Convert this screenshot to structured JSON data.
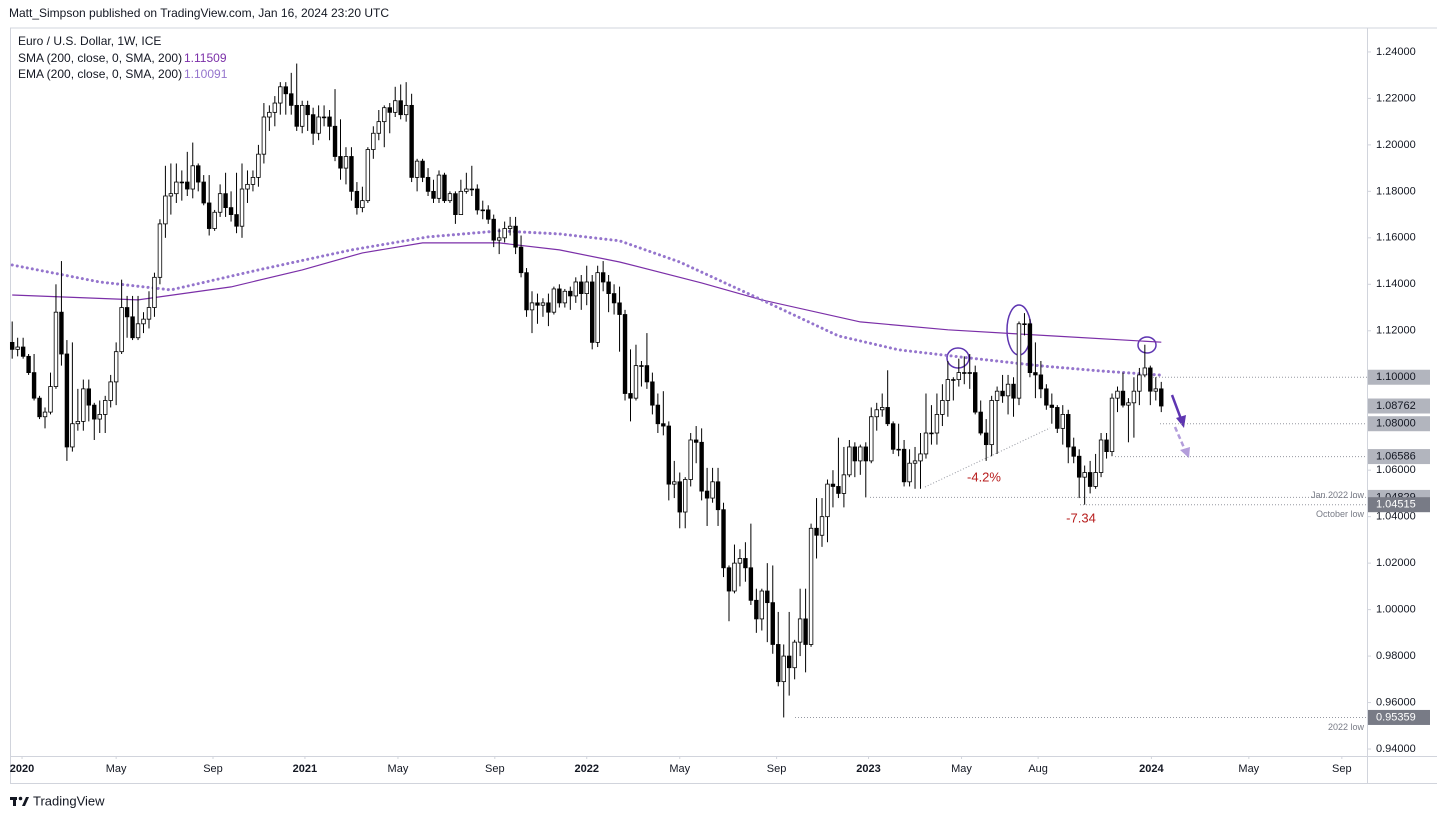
{
  "header": "Matt_Simpson published on TradingView.com, Jan 16, 2024 23:20 UTC",
  "footer": "TradingView",
  "chart_data": {
    "type": "candlestick",
    "title": "Euro / U.S. Dollar, 1W, ICE",
    "colors": {
      "up": "#ffffff",
      "down": "#000000",
      "outline": "#000000"
    },
    "xlim": [
      -0.4,
      247.6
    ],
    "ylim": [
      0.937,
      1.2503
    ],
    "xticks": [
      {
        "value": 1.8,
        "label": "2020"
      },
      {
        "value": 19,
        "label": "May"
      },
      {
        "value": 36.7,
        "label": "Sep"
      },
      {
        "value": 53.5,
        "label": "2021"
      },
      {
        "value": 70.5,
        "label": "May"
      },
      {
        "value": 88.2,
        "label": "Sep"
      },
      {
        "value": 105,
        "label": "2022"
      },
      {
        "value": 122,
        "label": "May"
      },
      {
        "value": 139.7,
        "label": "Sep"
      },
      {
        "value": 156.5,
        "label": "2023"
      },
      {
        "value": 173.5,
        "label": "May"
      },
      {
        "value": 187.5,
        "label": "Aug"
      },
      {
        "value": 208.2,
        "label": "2024"
      },
      {
        "value": 226,
        "label": "May"
      },
      {
        "value": 243,
        "label": "Sep"
      }
    ],
    "yticks": [
      {
        "value": 0.94,
        "label": "0.94000"
      },
      {
        "value": 0.96,
        "label": "0.96000"
      },
      {
        "value": 0.98,
        "label": "0.98000"
      },
      {
        "value": 1.0,
        "label": "1.00000"
      },
      {
        "value": 1.02,
        "label": "1.02000"
      },
      {
        "value": 1.04,
        "label": "1.04000"
      },
      {
        "value": 1.06,
        "label": "1.06000"
      },
      {
        "value": 1.08,
        "label": "1.08000"
      },
      {
        "value": 1.1,
        "label": "1.10000"
      },
      {
        "value": 1.12,
        "label": "1.12000"
      },
      {
        "value": 1.14,
        "label": "1.14000"
      },
      {
        "value": 1.16,
        "label": "1.16000"
      },
      {
        "value": 1.18,
        "label": "1.18000"
      },
      {
        "value": 1.2,
        "label": "1.20000"
      },
      {
        "value": 1.22,
        "label": "1.22000"
      },
      {
        "value": 1.24,
        "label": "1.24000"
      }
    ],
    "open": [
      1.115,
      1.112,
      1.113,
      1.109,
      1.102,
      1.091,
      1.083,
      1.085,
      1.096,
      1.128,
      1.11,
      1.07,
      1.08,
      1.081,
      1.095,
      1.088,
      1.082,
      1.084,
      1.09,
      1.098,
      1.111,
      1.13,
      1.126,
      1.117,
      1.123,
      1.125,
      1.13,
      1.143,
      1.166,
      1.178,
      1.179,
      1.184,
      1.184,
      1.181,
      1.191,
      1.184,
      1.175,
      1.164,
      1.171,
      1.179,
      1.173,
      1.17,
      1.165,
      1.181,
      1.183,
      1.186,
      1.196,
      1.212,
      1.214,
      1.218,
      1.225,
      1.222,
      1.217,
      1.208,
      1.217,
      1.213,
      1.205,
      1.212,
      1.212,
      1.208,
      1.195,
      1.19,
      1.195,
      1.18,
      1.173,
      1.176,
      1.198,
      1.205,
      1.21,
      1.216,
      1.214,
      1.219,
      1.213,
      1.217,
      1.186,
      1.193,
      1.186,
      1.18,
      1.177,
      1.187,
      1.176,
      1.179,
      1.17,
      1.18,
      1.181,
      1.181,
      1.172,
      1.172,
      1.168,
      1.159,
      1.16,
      1.164,
      1.165,
      1.156,
      1.145,
      1.129,
      1.132,
      1.131,
      1.132,
      1.128,
      1.138,
      1.132,
      1.137,
      1.135,
      1.141,
      1.136,
      1.141,
      1.115,
      1.145,
      1.141,
      1.136,
      1.132,
      1.127,
      1.093,
      1.091,
      1.105,
      1.105,
      1.098,
      1.088,
      1.08,
      1.079,
      1.054,
      1.055,
      1.042,
      1.056,
      1.073,
      1.072,
      1.051,
      1.048,
      1.055,
      1.043,
      1.018,
      1.008,
      1.02,
      1.022,
      1.018,
      1.004,
      0.996,
      1.008,
      1.003,
      0.985,
      0.969,
      0.98,
      0.975,
      0.986,
      0.996,
      0.985,
      1.035,
      1.032,
      1.04,
      1.054,
      1.053,
      1.05,
      1.058,
      1.07,
      1.064,
      1.07,
      1.064,
      1.083,
      1.086,
      1.087,
      1.08,
      1.069,
      1.069,
      1.055,
      1.063,
      1.064,
      1.067,
      1.076,
      1.076,
      1.084,
      1.09,
      1.099,
      1.099,
      1.102,
      1.102,
      1.102,
      1.085,
      1.076,
      1.071,
      1.09,
      1.094,
      1.092,
      1.097,
      1.091,
      1.123,
      1.123,
      1.102,
      1.101,
      1.095,
      1.088,
      1.087,
      1.078,
      1.084,
      1.07,
      1.066,
      1.057,
      1.059,
      1.053,
      1.059,
      1.073,
      1.068,
      1.091,
      1.094,
      1.088,
      1.089,
      1.094,
      1.101,
      1.104,
      1.094,
      1.095
    ],
    "high": [
      1.124,
      1.117,
      1.117,
      1.11,
      1.11,
      1.092,
      1.087,
      1.102,
      1.14,
      1.15,
      1.116,
      1.115,
      1.095,
      1.099,
      1.099,
      1.089,
      1.09,
      1.092,
      1.101,
      1.115,
      1.142,
      1.135,
      1.135,
      1.135,
      1.128,
      1.137,
      1.145,
      1.168,
      1.191,
      1.192,
      1.192,
      1.189,
      1.197,
      1.201,
      1.192,
      1.187,
      1.187,
      1.172,
      1.183,
      1.188,
      1.18,
      1.188,
      1.192,
      1.189,
      1.189,
      1.2,
      1.218,
      1.217,
      1.221,
      1.227,
      1.227,
      1.231,
      1.235,
      1.219,
      1.219,
      1.216,
      1.217,
      1.217,
      1.215,
      1.224,
      1.211,
      1.199,
      1.199,
      1.184,
      1.182,
      1.199,
      1.208,
      1.215,
      1.217,
      1.218,
      1.225,
      1.226,
      1.227,
      1.222,
      1.194,
      1.194,
      1.19,
      1.185,
      1.189,
      1.188,
      1.18,
      1.18,
      1.185,
      1.188,
      1.191,
      1.183,
      1.176,
      1.174,
      1.17,
      1.164,
      1.167,
      1.169,
      1.169,
      1.161,
      1.147,
      1.137,
      1.136,
      1.134,
      1.136,
      1.139,
      1.14,
      1.138,
      1.139,
      1.143,
      1.144,
      1.148,
      1.144,
      1.148,
      1.15,
      1.144,
      1.14,
      1.139,
      1.129,
      1.112,
      1.114,
      1.107,
      1.119,
      1.102,
      1.093,
      1.094,
      1.081,
      1.064,
      1.059,
      1.057,
      1.076,
      1.079,
      1.078,
      1.061,
      1.061,
      1.061,
      1.046,
      1.019,
      1.028,
      1.026,
      1.029,
      1.037,
      1.009,
      1.009,
      1.02,
      1.019,
      0.999,
      0.985,
      0.999,
      0.987,
      1.009,
      1.009,
      1.037,
      1.048,
      1.048,
      1.056,
      1.06,
      1.074,
      1.07,
      1.073,
      1.072,
      1.071,
      1.072,
      1.087,
      1.089,
      1.093,
      1.103,
      1.081,
      1.08,
      1.073,
      1.069,
      1.07,
      1.076,
      1.093,
      1.088,
      1.093,
      1.097,
      1.107,
      1.1,
      1.108,
      1.109,
      1.11,
      1.105,
      1.09,
      1.082,
      1.092,
      1.096,
      1.101,
      1.101,
      1.1,
      1.124,
      1.1276,
      1.125,
      1.115,
      1.107,
      1.097,
      1.093,
      1.088,
      1.088,
      1.086,
      1.074,
      1.069,
      1.062,
      1.064,
      1.067,
      1.076,
      1.076,
      1.093,
      1.096,
      1.102,
      1.091,
      1.1,
      1.104,
      1.114,
      1.105,
      1.1,
      1.098
    ],
    "low": [
      1.108,
      1.109,
      1.108,
      1.101,
      1.09,
      1.082,
      1.078,
      1.084,
      1.095,
      1.105,
      1.064,
      1.068,
      1.077,
      1.077,
      1.081,
      1.073,
      1.076,
      1.076,
      1.087,
      1.088,
      1.11,
      1.117,
      1.116,
      1.116,
      1.119,
      1.121,
      1.126,
      1.14,
      1.16,
      1.17,
      1.175,
      1.176,
      1.178,
      1.177,
      1.18,
      1.174,
      1.161,
      1.163,
      1.169,
      1.169,
      1.167,
      1.162,
      1.16,
      1.175,
      1.18,
      1.182,
      1.192,
      1.206,
      1.208,
      1.213,
      1.213,
      1.213,
      1.206,
      1.205,
      1.206,
      1.2,
      1.202,
      1.208,
      1.202,
      1.193,
      1.185,
      1.183,
      1.176,
      1.17,
      1.171,
      1.175,
      1.194,
      1.202,
      1.199,
      1.205,
      1.212,
      1.211,
      1.21,
      1.184,
      1.18,
      1.184,
      1.178,
      1.175,
      1.175,
      1.175,
      1.175,
      1.166,
      1.17,
      1.179,
      1.178,
      1.17,
      1.168,
      1.166,
      1.156,
      1.153,
      1.158,
      1.161,
      1.153,
      1.143,
      1.126,
      1.119,
      1.123,
      1.126,
      1.122,
      1.127,
      1.13,
      1.13,
      1.129,
      1.132,
      1.129,
      1.131,
      1.112,
      1.113,
      1.137,
      1.128,
      1.127,
      1.111,
      1.09,
      1.081,
      1.09,
      1.096,
      1.095,
      1.084,
      1.076,
      1.075,
      1.047,
      1.048,
      1.035,
      1.035,
      1.053,
      1.063,
      1.047,
      1.036,
      1.046,
      1.036,
      1.014,
      0.995,
      1.007,
      1.01,
      1.012,
      1.002,
      0.99,
      0.991,
      0.986,
      0.981,
      0.967,
      0.95359,
      0.963,
      0.97,
      0.98,
      0.973,
      0.984,
      1.022,
      1.027,
      1.029,
      1.044,
      1.048,
      1.044,
      1.057,
      1.057,
      1.058,
      1.04829,
      1.063,
      1.077,
      1.083,
      1.079,
      1.067,
      1.066,
      1.053,
      1.053,
      1.052,
      1.052,
      1.065,
      1.071,
      1.071,
      1.079,
      1.083,
      1.09,
      1.096,
      1.097,
      1.095,
      1.084,
      1.075,
      1.064,
      1.066,
      1.067,
      1.089,
      1.084,
      1.083,
      1.088,
      1.118,
      1.1,
      1.091,
      1.091,
      1.086,
      1.08,
      1.076,
      1.071,
      1.063,
      1.063,
      1.048,
      1.04515,
      1.05,
      1.052,
      1.057,
      1.065,
      1.066,
      1.085,
      1.087,
      1.072,
      1.074,
      1.088,
      1.1,
      1.088,
      1.09,
      1.085
    ],
    "close": [
      1.112,
      1.113,
      1.109,
      1.102,
      1.091,
      1.083,
      1.085,
      1.096,
      1.128,
      1.11,
      1.07,
      1.08,
      1.081,
      1.095,
      1.088,
      1.082,
      1.084,
      1.09,
      1.098,
      1.111,
      1.13,
      1.126,
      1.117,
      1.123,
      1.125,
      1.13,
      1.143,
      1.166,
      1.178,
      1.179,
      1.184,
      1.184,
      1.181,
      1.191,
      1.184,
      1.175,
      1.164,
      1.171,
      1.179,
      1.173,
      1.17,
      1.165,
      1.181,
      1.183,
      1.186,
      1.196,
      1.212,
      1.214,
      1.218,
      1.225,
      1.222,
      1.217,
      1.208,
      1.217,
      1.213,
      1.205,
      1.212,
      1.212,
      1.208,
      1.195,
      1.19,
      1.195,
      1.18,
      1.173,
      1.176,
      1.198,
      1.205,
      1.21,
      1.216,
      1.214,
      1.219,
      1.213,
      1.217,
      1.186,
      1.193,
      1.186,
      1.18,
      1.177,
      1.187,
      1.176,
      1.179,
      1.17,
      1.18,
      1.181,
      1.181,
      1.172,
      1.172,
      1.168,
      1.159,
      1.16,
      1.164,
      1.165,
      1.156,
      1.145,
      1.129,
      1.132,
      1.131,
      1.132,
      1.128,
      1.138,
      1.132,
      1.137,
      1.135,
      1.141,
      1.136,
      1.141,
      1.115,
      1.145,
      1.141,
      1.136,
      1.132,
      1.127,
      1.093,
      1.091,
      1.105,
      1.105,
      1.098,
      1.088,
      1.08,
      1.079,
      1.054,
      1.055,
      1.042,
      1.056,
      1.073,
      1.072,
      1.051,
      1.048,
      1.055,
      1.043,
      1.018,
      1.008,
      1.02,
      1.022,
      1.018,
      1.004,
      0.996,
      1.008,
      1.003,
      0.985,
      0.969,
      0.98,
      0.975,
      0.986,
      0.996,
      0.985,
      1.035,
      1.032,
      1.04,
      1.054,
      1.053,
      1.05,
      1.058,
      1.07,
      1.064,
      1.07,
      1.064,
      1.083,
      1.086,
      1.087,
      1.08,
      1.069,
      1.069,
      1.055,
      1.063,
      1.064,
      1.067,
      1.076,
      1.076,
      1.084,
      1.09,
      1.099,
      1.099,
      1.102,
      1.102,
      1.102,
      1.085,
      1.076,
      1.071,
      1.09,
      1.094,
      1.092,
      1.097,
      1.091,
      1.123,
      1.123,
      1.102,
      1.101,
      1.095,
      1.088,
      1.087,
      1.078,
      1.084,
      1.07,
      1.066,
      1.057,
      1.059,
      1.053,
      1.059,
      1.073,
      1.068,
      1.091,
      1.094,
      1.088,
      1.089,
      1.094,
      1.101,
      1.104,
      1.094,
      1.095,
      1.08762
    ],
    "indicators": [
      {
        "name": "SMA (200, close, 0, SMA, 200)",
        "last": 1.11509,
        "color": "#7b2fa8",
        "style": "solid",
        "x": [
          0,
          23,
          40,
          53,
          64,
          75,
          89,
          100,
          111,
          126,
          137,
          155,
          171,
          190,
          210
        ],
        "values": [
          1.1354,
          1.1333,
          1.1389,
          1.1462,
          1.1535,
          1.1578,
          1.1578,
          1.1548,
          1.1496,
          1.1406,
          1.1333,
          1.1238,
          1.1204,
          1.1178,
          1.11509
        ]
      },
      {
        "name": "EMA (200, close, 0, SMA, 200)",
        "last": 1.10091,
        "color": "#9575cd",
        "style": "dotted",
        "x": [
          0,
          16,
          29,
          45,
          62,
          76,
          89,
          100,
          111,
          122,
          137,
          151,
          162,
          173,
          188,
          199,
          210
        ],
        "values": [
          1.1483,
          1.141,
          1.1376,
          1.1462,
          1.1548,
          1.1604,
          1.163,
          1.1617,
          1.1587,
          1.1496,
          1.1333,
          1.1178,
          1.1118,
          1.1088,
          1.1049,
          1.1027,
          1.10091
        ]
      }
    ],
    "levels": [
      {
        "value": 1.1,
        "label": "1.10000"
      },
      {
        "value": 1.08762,
        "label": "1.08762"
      },
      {
        "value": 1.08,
        "label": "1.08000"
      },
      {
        "value": 1.06586,
        "label": "1.06586"
      },
      {
        "value": 1.04829,
        "label": "1.04829",
        "note": "Jan 2022 low"
      },
      {
        "value": 1.04515,
        "label": "1.04515",
        "note": "October low"
      },
      {
        "value": 0.95359,
        "label": "0.95359",
        "note": "2022 low"
      }
    ],
    "annotations": [
      "-4.2%",
      "-7.34"
    ]
  }
}
